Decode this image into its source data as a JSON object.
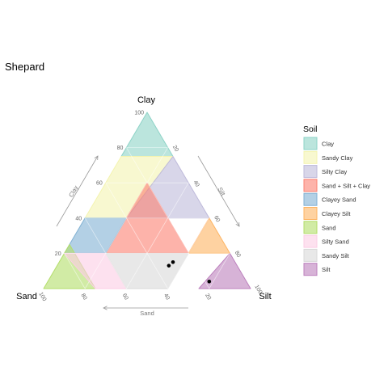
{
  "chart_data": {
    "type": "ternary",
    "title": "Shepard",
    "vertices": {
      "top": "Clay",
      "left": "Sand",
      "right": "Silt"
    },
    "axis_titles": {
      "clay": "Clay",
      "silt": "Silt",
      "sand": "Sand"
    },
    "ticks": [
      20,
      40,
      60,
      80,
      100
    ],
    "grid": true,
    "legend": {
      "title": "Soil",
      "position": "right"
    },
    "regions": [
      {
        "name": "Clay",
        "color": "#8dd3c7",
        "vertices": [
          [
            100,
            0,
            0
          ],
          [
            75,
            0,
            25
          ],
          [
            75,
            25,
            0
          ]
        ]
      },
      {
        "name": "Sandy Clay",
        "color": "#f4f4b0",
        "vertices": [
          [
            75,
            25,
            0
          ],
          [
            75,
            0,
            25
          ],
          [
            40,
            0,
            60
          ],
          [
            40,
            20,
            40
          ]
        ]
      },
      {
        "name": "Silty Clay",
        "color": "#bebada",
        "vertices": [
          [
            75,
            25,
            0
          ],
          [
            40,
            20,
            40
          ],
          [
            40,
            60,
            0
          ]
        ]
      },
      {
        "name": "Sand + Silt + Clay",
        "color": "#fb8072",
        "vertices": [
          [
            60,
            20,
            20
          ],
          [
            40,
            20,
            40
          ],
          [
            20,
            20,
            60
          ],
          [
            20,
            60,
            20
          ],
          [
            40,
            60,
            0
          ],
          [
            20,
            60,
            20
          ]
        ]
      },
      {
        "name": "Clayey Sand",
        "color": "#80b1d3",
        "vertices": [
          [
            40,
            0,
            60
          ],
          [
            40,
            20,
            40
          ],
          [
            20,
            20,
            60
          ],
          [
            20,
            0,
            80
          ]
        ]
      },
      {
        "name": "Clayey Silt",
        "color": "#fdb462",
        "vertices": [
          [
            40,
            60,
            0
          ],
          [
            20,
            60,
            20
          ],
          [
            20,
            80,
            0
          ]
        ]
      },
      {
        "name": "Sand",
        "color": "#b3de69",
        "vertices": [
          [
            25,
            0,
            75
          ],
          [
            0,
            0,
            100
          ],
          [
            0,
            25,
            75
          ]
        ]
      },
      {
        "name": "Silty Sand",
        "color": "#fccde5",
        "vertices": [
          [
            20,
            0,
            80
          ],
          [
            20,
            20,
            60
          ],
          [
            0,
            40,
            60
          ],
          [
            0,
            25,
            75
          ]
        ]
      },
      {
        "name": "Sandy Silt",
        "color": "#d9d9d9",
        "vertices": [
          [
            20,
            20,
            60
          ],
          [
            20,
            60,
            20
          ],
          [
            0,
            60,
            40
          ],
          [
            0,
            40,
            60
          ]
        ]
      },
      {
        "name": "Silt",
        "color": "#bc80bd",
        "vertices": [
          [
            20,
            80,
            0
          ],
          [
            0,
            100,
            0
          ],
          [
            0,
            75,
            25
          ]
        ]
      }
    ],
    "points": [
      {
        "clay": 15,
        "silt": 55,
        "sand": 30
      },
      {
        "clay": 13,
        "silt": 54,
        "sand": 33
      },
      {
        "clay": 4,
        "silt": 78,
        "sand": 18
      }
    ]
  }
}
